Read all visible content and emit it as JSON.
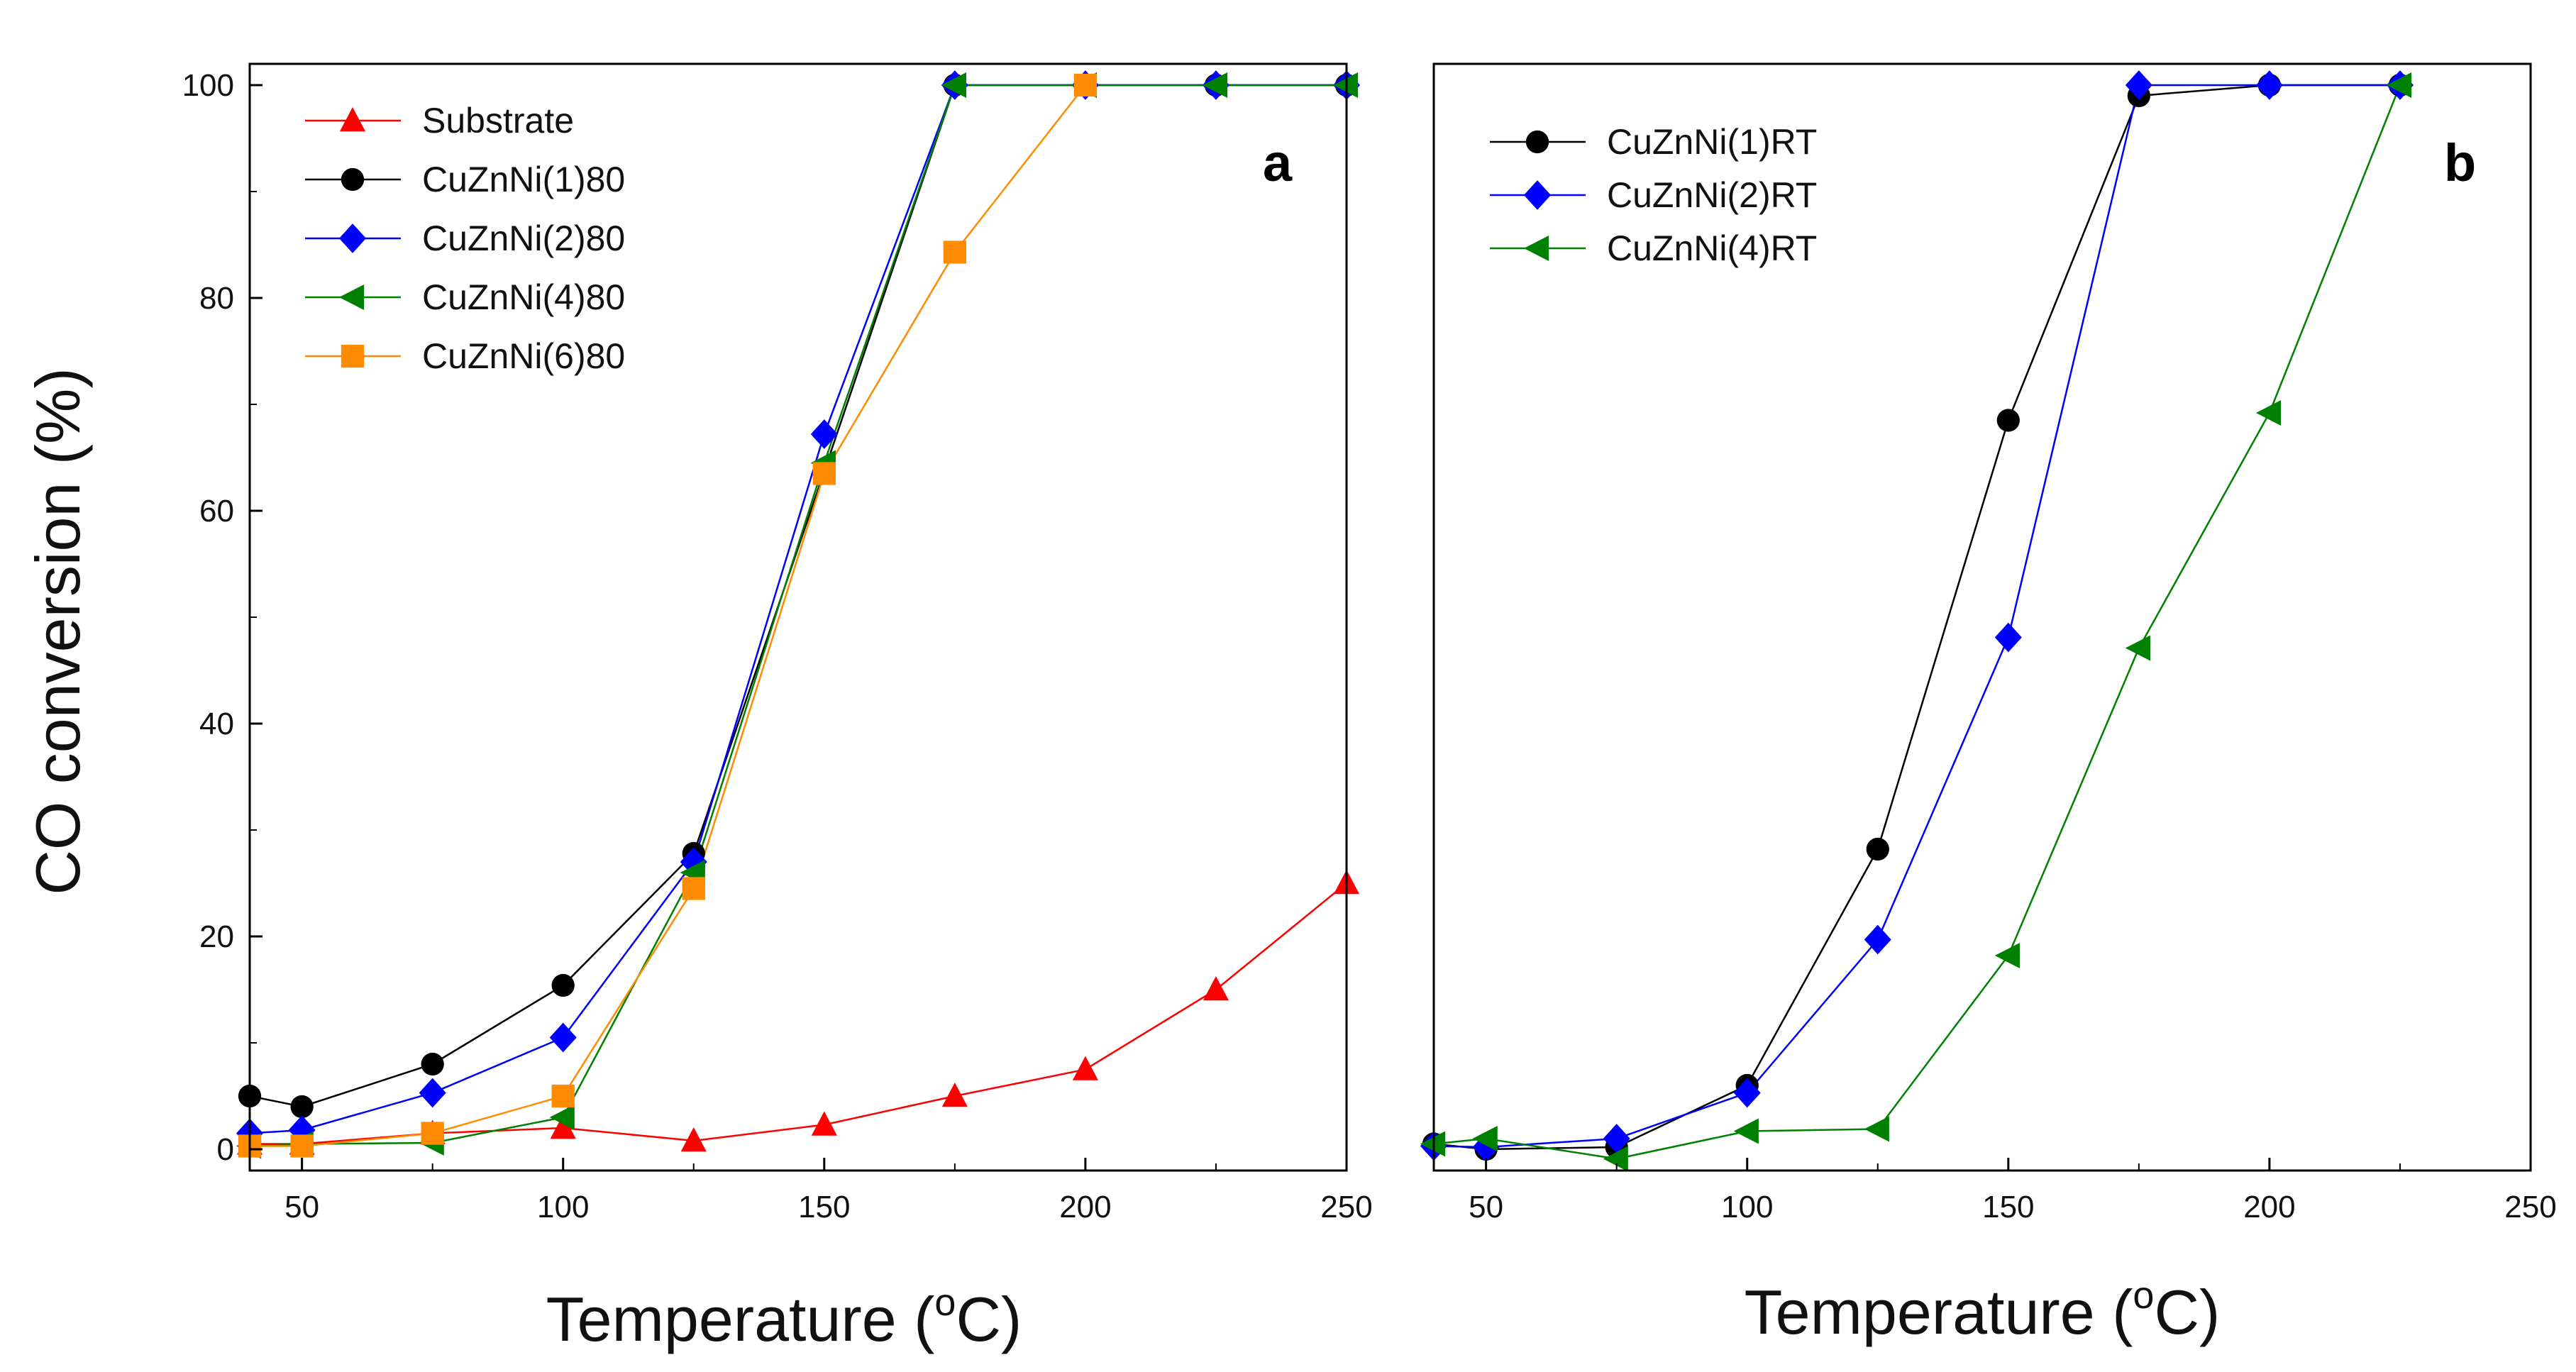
{
  "chart_data": [
    {
      "type": "line",
      "panel_label": "a",
      "xlabel_main": "Temperature (",
      "xlabel_sup": "o",
      "xlabel_end": "C)",
      "ylabel": "CO conversion (%)",
      "xlim": [
        40,
        250
      ],
      "ylim": [
        -2,
        102
      ],
      "xticks": [
        50,
        100,
        150,
        200,
        250
      ],
      "xtick_labels": [
        "50",
        "100",
        "150",
        "200",
        "250"
      ],
      "yticks": [
        0,
        20,
        40,
        60,
        80,
        100
      ],
      "ytick_labels": [
        "0",
        "20",
        "40",
        "60",
        "80",
        "100"
      ],
      "legend_position": "top-left",
      "series": [
        {
          "name": "Substrate",
          "color": "#ff0000",
          "marker": "triangle-up",
          "x": [
            40,
            50,
            75,
            100,
            125,
            150,
            175,
            200,
            225,
            250
          ],
          "y": [
            0.5,
            0.5,
            1.5,
            2,
            0.8,
            2.3,
            5,
            7.5,
            15,
            25
          ]
        },
        {
          "name": "CuZnNi(1)80",
          "color": "#000000",
          "marker": "circle",
          "x": [
            40,
            50,
            75,
            100,
            125,
            150,
            175,
            200,
            225,
            250
          ],
          "y": [
            5,
            4,
            8,
            15.4,
            27.8,
            63.7,
            100,
            100,
            100,
            100
          ]
        },
        {
          "name": "CuZnNi(2)80",
          "color": "#0000ff",
          "marker": "diamond",
          "x": [
            40,
            50,
            75,
            100,
            125,
            150,
            175,
            200,
            225,
            250
          ],
          "y": [
            1.5,
            1.8,
            5.3,
            10.5,
            27,
            67.2,
            100,
            100,
            100,
            100
          ]
        },
        {
          "name": "CuZnNi(4)80",
          "color": "#008000",
          "marker": "triangle-left",
          "x": [
            40,
            50,
            75,
            100,
            125,
            150,
            175,
            200,
            225,
            250
          ],
          "y": [
            0.3,
            0.5,
            0.6,
            3,
            26,
            64.5,
            100,
            100,
            100,
            100
          ]
        },
        {
          "name": "CuZnNi(6)80",
          "color": "#ff8c00",
          "marker": "square",
          "x": [
            40,
            50,
            75,
            100,
            125,
            150,
            175,
            200
          ],
          "y": [
            0.3,
            0.3,
            1.5,
            5,
            24.5,
            63.5,
            84.3,
            100
          ]
        }
      ]
    },
    {
      "type": "line",
      "panel_label": "b",
      "xlabel_main": "Temperature (",
      "xlabel_sup": "o",
      "xlabel_end": "C)",
      "xlim": [
        40,
        250
      ],
      "ylim": [
        -2,
        102
      ],
      "xticks": [
        50,
        100,
        150,
        200,
        250
      ],
      "xtick_labels": [
        "50",
        "100",
        "150",
        "200",
        "250"
      ],
      "legend_position": "top-left",
      "series": [
        {
          "name": "CuZnNi(1)RT",
          "color": "#000000",
          "marker": "circle",
          "x": [
            40,
            50,
            75,
            100,
            125,
            150,
            175,
            200,
            225
          ],
          "y": [
            0.5,
            0,
            0.2,
            6,
            28.2,
            68.5,
            99,
            100,
            100
          ]
        },
        {
          "name": "CuZnNi(2)RT",
          "color": "#0000ff",
          "marker": "diamond",
          "x": [
            40,
            50,
            75,
            100,
            125,
            150,
            175,
            200,
            225
          ],
          "y": [
            0.3,
            0.2,
            1,
            5.3,
            19.7,
            48.1,
            100,
            100,
            100
          ]
        },
        {
          "name": "CuZnNi(4)RT",
          "color": "#008000",
          "marker": "triangle-left",
          "x": [
            40,
            50,
            75,
            100,
            125,
            150,
            175,
            200,
            225
          ],
          "y": [
            0.5,
            1,
            -0.9,
            1.7,
            1.9,
            18.2,
            47.1,
            69.2,
            100
          ]
        }
      ]
    }
  ]
}
